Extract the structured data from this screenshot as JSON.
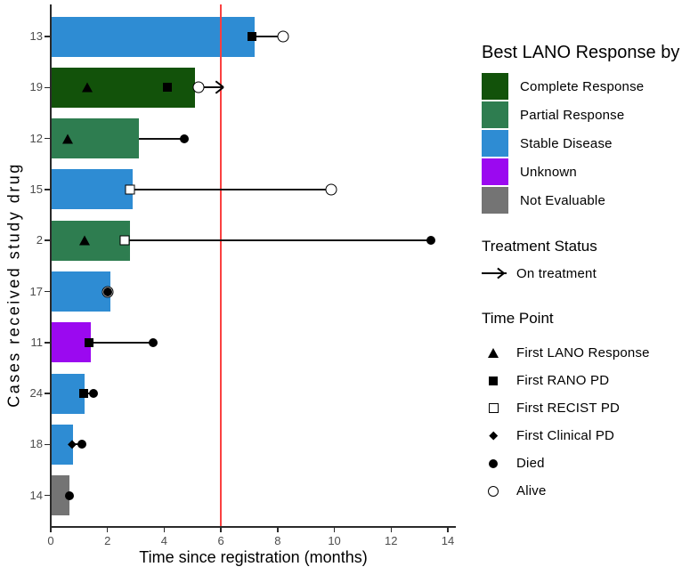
{
  "chart_data": {
    "type": "bar",
    "subtype": "swimmer-plot",
    "orientation": "horizontal",
    "xlabel": "Time since registration (months)",
    "ylabel": "Cases received study drug",
    "xlim": [
      0,
      14
    ],
    "xticks": [
      "0",
      "2",
      "4",
      "6",
      "8",
      "10",
      "12",
      "14"
    ],
    "grid": "off",
    "reference_line": {
      "x": 6,
      "color": "#FA4040"
    },
    "response_colors": {
      "Complete Response": "#12520A",
      "Partial Response": "#2E7D50",
      "Stable Disease": "#2E8CD3",
      "Unknown": "#9B09F0",
      "Not Evaluable": "#747474"
    },
    "rows": [
      {
        "case": "13",
        "response": "Stable Disease",
        "bar_length": 7.2,
        "connector": {
          "from": 7.1,
          "to": 8.2,
          "arrow": false
        },
        "markers": [
          {
            "type": "first_rano_pd",
            "x": 7.1
          },
          {
            "type": "alive",
            "x": 8.2
          }
        ]
      },
      {
        "case": "19",
        "response": "Complete Response",
        "bar_length": 5.1,
        "connector": {
          "from": 5.2,
          "to": 6.1,
          "arrow": true
        },
        "markers": [
          {
            "type": "first_lano_response",
            "x": 1.3
          },
          {
            "type": "first_rano_pd",
            "x": 4.1
          },
          {
            "type": "alive",
            "x": 5.2
          }
        ]
      },
      {
        "case": "12",
        "response": "Partial Response",
        "bar_length": 3.1,
        "connector": {
          "from": 3.1,
          "to": 4.7,
          "arrow": false
        },
        "markers": [
          {
            "type": "first_lano_response",
            "x": 0.6
          },
          {
            "type": "died",
            "x": 4.7
          }
        ]
      },
      {
        "case": "15",
        "response": "Stable Disease",
        "bar_length": 2.9,
        "connector": {
          "from": 2.8,
          "to": 9.9,
          "arrow": false
        },
        "markers": [
          {
            "type": "first_recist_pd",
            "x": 2.8
          },
          {
            "type": "alive",
            "x": 9.9
          }
        ]
      },
      {
        "case": "2",
        "response": "Partial Response",
        "bar_length": 2.8,
        "connector": {
          "from": 2.6,
          "to": 13.4,
          "arrow": false
        },
        "markers": [
          {
            "type": "first_lano_response",
            "x": 1.2
          },
          {
            "type": "first_recist_pd",
            "x": 2.6
          },
          {
            "type": "died",
            "x": 13.4
          }
        ]
      },
      {
        "case": "17",
        "response": "Stable Disease",
        "bar_length": 2.1,
        "connector": null,
        "markers": [
          {
            "type": "alive",
            "x": 2.0
          },
          {
            "type": "died",
            "x": 2.0
          }
        ]
      },
      {
        "case": "11",
        "response": "Unknown",
        "bar_length": 1.4,
        "connector": {
          "from": 1.35,
          "to": 3.6,
          "arrow": false
        },
        "markers": [
          {
            "type": "first_rano_pd",
            "x": 1.35
          },
          {
            "type": "died",
            "x": 3.6
          }
        ]
      },
      {
        "case": "24",
        "response": "Stable Disease",
        "bar_length": 1.2,
        "connector": {
          "from": 1.15,
          "to": 1.5,
          "arrow": false
        },
        "markers": [
          {
            "type": "first_rano_pd",
            "x": 1.15
          },
          {
            "type": "died",
            "x": 1.5
          }
        ]
      },
      {
        "case": "18",
        "response": "Stable Disease",
        "bar_length": 0.8,
        "connector": {
          "from": 0.75,
          "to": 1.1,
          "arrow": false
        },
        "markers": [
          {
            "type": "first_clinical_pd",
            "x": 0.75
          },
          {
            "type": "died",
            "x": 1.1
          }
        ]
      },
      {
        "case": "14",
        "response": "Not Evaluable",
        "bar_length": 0.65,
        "connector": null,
        "markers": [
          {
            "type": "died",
            "x": 0.65
          }
        ]
      }
    ]
  },
  "legend": {
    "response": {
      "title": "Best LANO Response by",
      "items": [
        {
          "label": "Complete Response",
          "color": "#12520A"
        },
        {
          "label": "Partial Response",
          "color": "#2E7D50"
        },
        {
          "label": "Stable Disease",
          "color": "#2E8CD3"
        },
        {
          "label": "Unknown",
          "color": "#9B09F0"
        },
        {
          "label": "Not Evaluable",
          "color": "#747474"
        }
      ]
    },
    "treatment": {
      "title": "Treatment Status",
      "items": [
        {
          "label": "On treatment",
          "symbol": "arrow-right"
        }
      ]
    },
    "timepoint": {
      "title": "Time Point",
      "items": [
        {
          "label": "First LANO Response",
          "symbol": "triangle-filled"
        },
        {
          "label": "First RANO PD",
          "symbol": "square-filled"
        },
        {
          "label": "First RECIST PD",
          "symbol": "square-open"
        },
        {
          "label": "First Clinical PD",
          "symbol": "diamond-small-filled"
        },
        {
          "label": "Died",
          "symbol": "circle-filled"
        },
        {
          "label": "Alive",
          "symbol": "circle-open"
        }
      ]
    }
  }
}
